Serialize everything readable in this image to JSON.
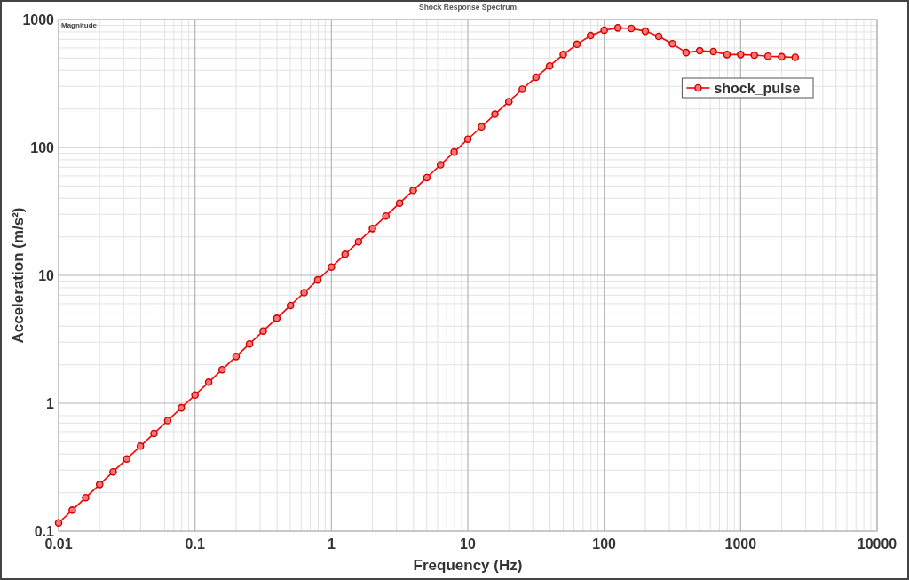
{
  "chart_data": {
    "type": "line",
    "title": "Shock Response Spectrum",
    "xlabel": "Frequency (Hz)",
    "ylabel": "Acceleration (m/s²)",
    "annotations": [
      "Magnitude"
    ],
    "x": [
      0.01,
      0.0126,
      0.0158,
      0.02,
      0.0251,
      0.0316,
      0.0398,
      0.0501,
      0.0631,
      0.0794,
      0.1,
      0.126,
      0.158,
      0.2,
      0.251,
      0.316,
      0.398,
      0.501,
      0.631,
      0.794,
      1,
      1.26,
      1.58,
      2,
      2.51,
      3.16,
      3.98,
      5.01,
      6.31,
      7.94,
      10,
      12.6,
      15.8,
      20,
      25.1,
      31.6,
      39.8,
      50.1,
      63.1,
      79.4,
      100,
      126,
      158,
      200,
      251,
      316,
      398,
      501,
      631,
      794,
      1000,
      1259,
      1585,
      1995,
      2512
    ],
    "series": [
      {
        "name": "shock_pulse",
        "color": "#ff0000",
        "values": [
          0.116,
          0.146,
          0.183,
          0.232,
          0.291,
          0.367,
          0.462,
          0.581,
          0.732,
          0.921,
          1.16,
          1.46,
          1.83,
          2.32,
          2.91,
          3.67,
          4.62,
          5.81,
          7.32,
          9.21,
          11.6,
          14.6,
          18.3,
          23.2,
          29.1,
          36.7,
          46.2,
          58.1,
          73.2,
          92.1,
          116,
          145,
          182,
          228,
          285,
          354,
          434,
          533,
          641,
          749,
          826,
          861,
          852,
          811,
          738,
          647,
          552,
          571,
          563,
          533,
          533,
          527,
          517,
          512,
          507
        ]
      }
    ],
    "xlim": [
      0.01,
      10000
    ],
    "ylim": [
      0.1,
      1000
    ],
    "xticks": [
      0.01,
      0.1,
      1,
      10,
      100,
      1000,
      10000
    ],
    "yticks": [
      0.1,
      1,
      10,
      100,
      1000
    ],
    "log": "xy",
    "grid": true,
    "legend": "top right",
    "marker": "circle",
    "line_style": "solid"
  }
}
